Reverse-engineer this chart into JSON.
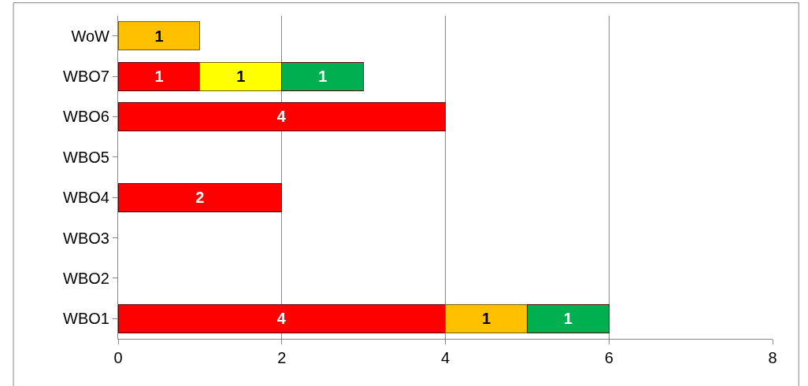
{
  "chart_data": {
    "type": "bar",
    "orientation": "horizontal",
    "stacked": true,
    "data_labels": true,
    "grid": "x",
    "categories": [
      "WoW",
      "WBO7",
      "WBO6",
      "WBO5",
      "WBO4",
      "WBO3",
      "WBO2",
      "WBO1"
    ],
    "xlim": [
      0,
      8
    ],
    "xticks": [
      0,
      2,
      4,
      6,
      8
    ],
    "series": [
      {
        "color": "#ff0000",
        "values": [
          null,
          1,
          4,
          null,
          2,
          null,
          null,
          4
        ]
      },
      {
        "color": "#ffc000",
        "values": [
          1,
          null,
          null,
          null,
          null,
          null,
          null,
          1
        ]
      },
      {
        "color": "#ffff00",
        "values": [
          null,
          1,
          null,
          null,
          null,
          null,
          null,
          null
        ]
      },
      {
        "color": "#00b050",
        "values": [
          null,
          1,
          null,
          null,
          null,
          null,
          null,
          1
        ]
      }
    ]
  }
}
